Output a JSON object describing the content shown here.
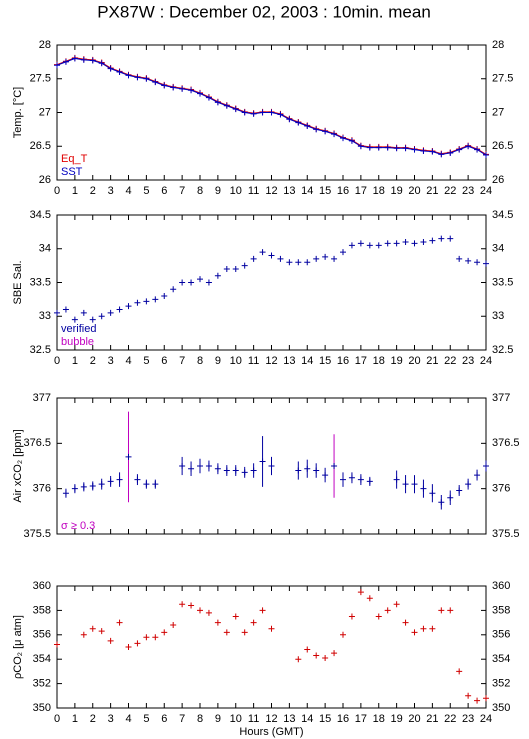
{
  "title": "PX87W : December 02, 2003 : 10min. mean",
  "chart_data": [
    {
      "type": "line",
      "ylabel": "Temp. [°C]",
      "x": [
        0,
        0.5,
        1,
        1.5,
        2,
        2.5,
        3,
        3.5,
        4,
        4.5,
        5,
        5.5,
        6,
        6.5,
        7,
        7.5,
        8,
        8.5,
        9,
        9.5,
        10,
        10.5,
        11,
        11.5,
        12,
        12.5,
        13,
        13.5,
        14,
        14.5,
        15,
        15.5,
        16,
        16.5,
        17,
        17.5,
        18,
        18.5,
        19,
        19.5,
        20,
        20.5,
        21,
        21.5,
        22,
        22.5,
        23,
        23.5,
        24
      ],
      "series": [
        {
          "name": "Eq_T",
          "color": "#e00000",
          "values": [
            27.71,
            27.76,
            27.81,
            27.79,
            27.78,
            27.74,
            27.66,
            27.61,
            27.56,
            27.53,
            27.51,
            27.46,
            27.41,
            27.38,
            27.36,
            27.34,
            27.29,
            27.23,
            27.16,
            27.11,
            27.06,
            27.01,
            26.99,
            27.01,
            27.01,
            26.98,
            26.91,
            26.86,
            26.81,
            26.76,
            26.73,
            26.69,
            26.63,
            26.59,
            26.51,
            26.49,
            26.49,
            26.49,
            26.48,
            26.48,
            26.46,
            26.44,
            26.43,
            26.39,
            26.41,
            26.46,
            26.51,
            26.46,
            26.38
          ]
        },
        {
          "name": "SST",
          "color": "#0000c0",
          "values": [
            27.7,
            27.75,
            27.8,
            27.78,
            27.77,
            27.73,
            27.65,
            27.6,
            27.55,
            27.52,
            27.5,
            27.45,
            27.4,
            27.37,
            27.35,
            27.33,
            27.28,
            27.22,
            27.15,
            27.1,
            27.05,
            27.0,
            26.98,
            27.0,
            27.0,
            26.97,
            26.9,
            26.85,
            26.8,
            26.75,
            26.72,
            26.68,
            26.62,
            26.58,
            26.5,
            26.48,
            26.48,
            26.48,
            26.47,
            26.47,
            26.45,
            26.43,
            26.42,
            26.38,
            26.4,
            26.45,
            26.5,
            26.45,
            26.37
          ]
        }
      ],
      "connect": true,
      "xlim": [
        0,
        24
      ],
      "xticks": [
        0,
        1,
        2,
        3,
        4,
        5,
        6,
        7,
        8,
        9,
        10,
        11,
        12,
        13,
        14,
        15,
        16,
        17,
        18,
        19,
        20,
        21,
        22,
        23,
        24
      ],
      "xtick_labels": true,
      "ylim": [
        26,
        28
      ],
      "yticks": [
        26,
        26.5,
        27,
        27.5,
        28
      ]
    },
    {
      "type": "line",
      "ylabel": "SBE Sal.",
      "x": [
        0,
        0.5,
        1,
        1.5,
        2,
        2.5,
        3,
        3.5,
        4,
        4.5,
        5,
        5.5,
        6,
        6.5,
        7,
        7.5,
        8,
        8.5,
        9,
        9.5,
        10,
        10.5,
        11,
        11.5,
        12,
        12.5,
        13,
        13.5,
        14,
        14.5,
        15,
        15.5,
        16,
        16.5,
        17,
        17.5,
        18,
        18.5,
        19,
        19.5,
        20,
        20.5,
        21,
        21.5,
        22,
        22.5,
        23,
        23.5,
        24
      ],
      "series": [
        {
          "name": "verified",
          "color": "#0000a0",
          "values": [
            33.05,
            33.1,
            32.95,
            33.05,
            32.95,
            33.0,
            33.05,
            33.1,
            33.15,
            33.2,
            33.22,
            33.25,
            33.3,
            33.4,
            33.5,
            33.5,
            33.55,
            33.5,
            33.6,
            33.7,
            33.7,
            33.75,
            33.85,
            33.95,
            33.9,
            33.85,
            33.8,
            33.8,
            33.8,
            33.85,
            33.88,
            33.85,
            33.95,
            34.05,
            34.08,
            34.05,
            34.05,
            34.08,
            34.08,
            34.1,
            34.08,
            34.1,
            34.12,
            34.15,
            34.15,
            33.85,
            33.82,
            33.8,
            33.78
          ]
        }
      ],
      "legend_extra": [
        {
          "text": "bubble",
          "color": "#c000c0"
        }
      ],
      "xlim": [
        0,
        24
      ],
      "xticks": [
        0,
        1,
        2,
        3,
        4,
        5,
        6,
        7,
        8,
        9,
        10,
        11,
        12,
        13,
        14,
        15,
        16,
        17,
        18,
        19,
        20,
        21,
        22,
        23,
        24
      ],
      "xtick_labels": true,
      "ylim": [
        32.5,
        34.5
      ],
      "yticks": [
        32.5,
        33,
        33.5,
        34,
        34.5
      ]
    },
    {
      "type": "line",
      "ylabel": "Air xCO₂ [ppm]",
      "x": [
        0,
        0.5,
        1,
        1.5,
        2,
        2.5,
        3,
        3.5,
        4,
        4.5,
        5,
        5.5,
        6,
        6.5,
        7,
        7.5,
        8,
        8.5,
        9,
        9.5,
        10,
        10.5,
        11,
        11.5,
        12,
        12.5,
        13,
        13.5,
        14,
        14.5,
        15,
        15.5,
        16,
        16.5,
        17,
        17.5,
        18,
        18.5,
        19,
        19.5,
        20,
        20.5,
        21,
        21.5,
        22,
        22.5,
        23,
        23.5,
        24
      ],
      "series": [
        {
          "name": "xCO2",
          "color": "#0000a0",
          "values": [
            null,
            375.95,
            376.0,
            376.02,
            376.03,
            376.05,
            376.08,
            376.1,
            376.35,
            376.1,
            376.05,
            376.05,
            null,
            null,
            376.25,
            376.22,
            376.25,
            376.25,
            376.22,
            376.2,
            376.2,
            376.18,
            376.2,
            376.3,
            376.25,
            null,
            null,
            376.2,
            376.22,
            376.2,
            376.15,
            376.25,
            376.1,
            376.12,
            376.1,
            376.08,
            null,
            null,
            376.1,
            376.05,
            376.05,
            376.0,
            375.95,
            375.85,
            375.9,
            375.98,
            376.05,
            376.15,
            376.25
          ],
          "errors": [
            null,
            0.05,
            0.05,
            0.05,
            0.05,
            0.06,
            0.06,
            0.08,
            0.5,
            0.06,
            0.05,
            0.05,
            null,
            null,
            0.1,
            0.08,
            0.08,
            0.06,
            0.06,
            0.06,
            0.06,
            0.06,
            0.08,
            0.28,
            0.1,
            null,
            null,
            0.1,
            0.1,
            0.08,
            0.08,
            0.35,
            0.08,
            0.06,
            0.06,
            0.05,
            null,
            null,
            0.1,
            0.1,
            0.1,
            0.1,
            0.1,
            0.08,
            0.08,
            0.06,
            0.06,
            0.06,
            0.06
          ]
        }
      ],
      "error_threshold": 0.3,
      "error_color": "#c000c0",
      "legend_extra": [
        {
          "text": "σ ≥ 0.3",
          "color": "#c000c0"
        }
      ],
      "xlim": [
        0,
        24
      ],
      "xticks": [
        0,
        1,
        2,
        3,
        4,
        5,
        6,
        7,
        8,
        9,
        10,
        11,
        12,
        13,
        14,
        15,
        16,
        17,
        18,
        19,
        20,
        21,
        22,
        23,
        24
      ],
      "xtick_labels": false,
      "ylim": [
        375.5,
        377
      ],
      "yticks": [
        375.5,
        376,
        376.5,
        377
      ]
    },
    {
      "type": "line",
      "ylabel": "ρCO₂ [μ atm]",
      "xlabel": "Hours (GMT)",
      "x": [
        0,
        0.5,
        1,
        1.5,
        2,
        2.5,
        3,
        3.5,
        4,
        4.5,
        5,
        5.5,
        6,
        6.5,
        7,
        7.5,
        8,
        8.5,
        9,
        9.5,
        10,
        10.5,
        11,
        11.5,
        12,
        12.5,
        13,
        13.5,
        14,
        14.5,
        15,
        15.5,
        16,
        16.5,
        17,
        17.5,
        18,
        18.5,
        19,
        19.5,
        20,
        20.5,
        21,
        21.5,
        22,
        22.5,
        23,
        23.5,
        24
      ],
      "series": [
        {
          "name": "pCO2",
          "color": "#d00000",
          "values": [
            355.2,
            null,
            null,
            356,
            356.5,
            356.3,
            355.5,
            357,
            355,
            355.3,
            355.8,
            355.8,
            356.2,
            356.8,
            358.5,
            358.4,
            358,
            357.8,
            357,
            356.2,
            357.5,
            356.2,
            357,
            358,
            356.5,
            null,
            null,
            354,
            354.8,
            354.3,
            354.1,
            354.5,
            356,
            357.5,
            359.5,
            359,
            357.5,
            358,
            358.5,
            357,
            356.2,
            356.5,
            356.5,
            358,
            358,
            353,
            351,
            350.6,
            350.8
          ]
        }
      ],
      "legend": false,
      "xlim": [
        0,
        24
      ],
      "xticks": [
        0,
        1,
        2,
        3,
        4,
        5,
        6,
        7,
        8,
        9,
        10,
        11,
        12,
        13,
        14,
        15,
        16,
        17,
        18,
        19,
        20,
        21,
        22,
        23,
        24
      ],
      "xtick_labels": true,
      "ylim": [
        350,
        360
      ],
      "yticks": [
        350,
        352,
        354,
        356,
        358,
        360
      ]
    }
  ]
}
